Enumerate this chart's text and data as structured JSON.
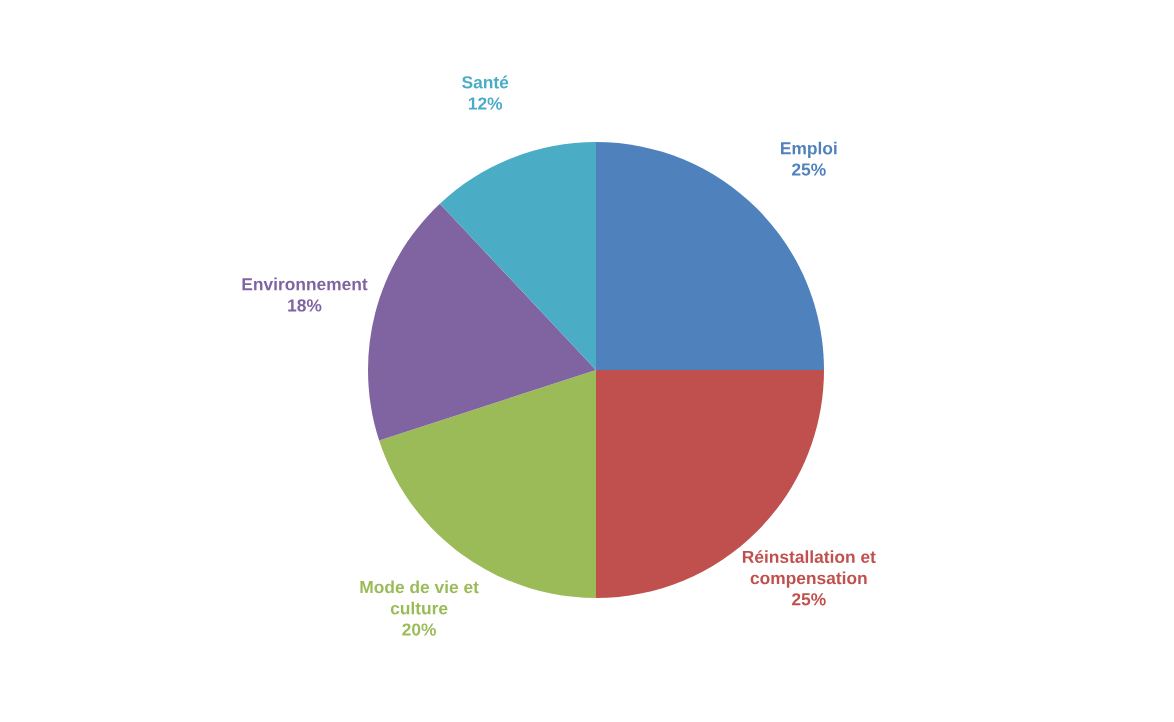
{
  "chart_data": {
    "type": "pie",
    "categories": [
      "Emploi",
      "Réinstallation et\ncompensation",
      "Mode de vie et\nculture",
      "Environnement",
      "Santé"
    ],
    "values": [
      25,
      25,
      20,
      18,
      12
    ],
    "colors": [
      "#4f81bd",
      "#c0504d",
      "#9bbb59",
      "#8064a2",
      "#4bacc6"
    ],
    "value_labels": [
      "25%",
      "25%",
      "20%",
      "18%",
      "12%"
    ]
  }
}
